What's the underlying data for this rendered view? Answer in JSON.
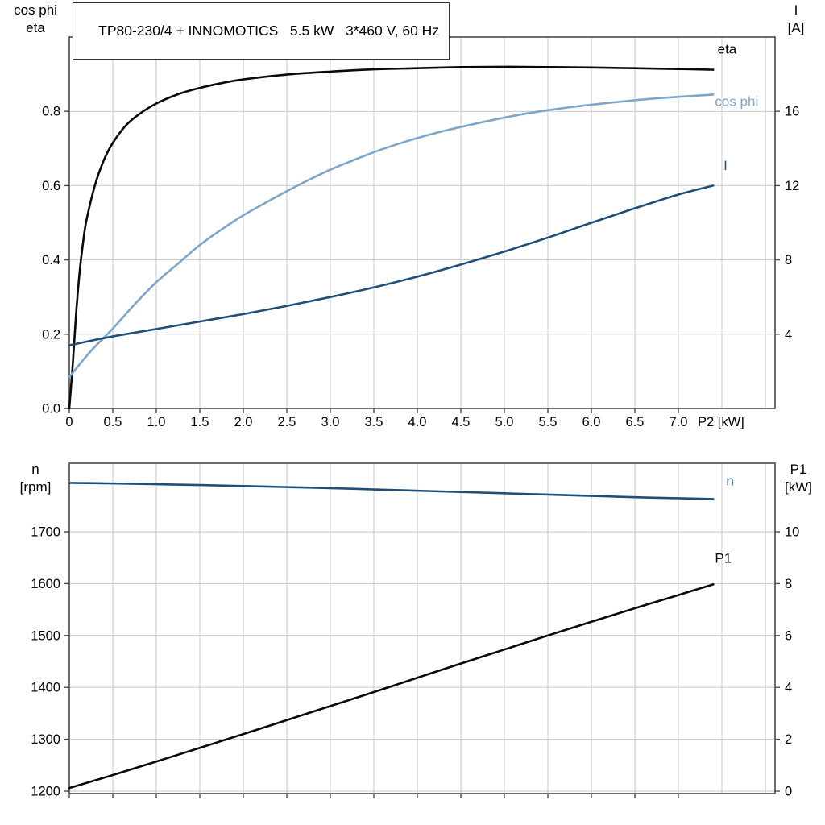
{
  "title_box": {
    "text": "TP80-230/4 + INNOMOTICS   5.5 kW   3*460 V, 60 Hz"
  },
  "colors": {
    "grid": "#c9c9c9",
    "frame": "#4a4a4a",
    "text": "#000000",
    "black_curve": "#0a0a0a",
    "dark_blue": "#1f4e79",
    "light_blue": "#7fa5c9"
  },
  "chart_data": [
    {
      "id": "motor-electrical",
      "type": "line",
      "x_axis": {
        "label": "P2 [kW]",
        "range": [
          0,
          8.111
        ],
        "ticks": [
          0,
          0.5,
          1,
          1.5,
          2,
          2.5,
          3,
          3.5,
          4,
          4.5,
          5,
          5.5,
          6,
          6.5,
          7
        ],
        "tick_labels": [
          "0",
          "0.5",
          "1.0",
          "1.5",
          "2.0",
          "2.5",
          "3.0",
          "3.5",
          "4.0",
          "4.5",
          "5.0",
          "5.5",
          "6.0",
          "6.5",
          "7.0"
        ],
        "grid": [
          0.5,
          1,
          1.5,
          2,
          2.5,
          3,
          3.5,
          4,
          4.5,
          5,
          5.5,
          6,
          6.5,
          7,
          7.5,
          8
        ]
      },
      "y_left": {
        "title_lines": [
          "cos phi",
          "eta"
        ],
        "range": [
          0,
          1.0
        ],
        "ticks": [
          0,
          0.2,
          0.4,
          0.6,
          0.8
        ],
        "tick_labels": [
          "0.0",
          "0.2",
          "0.4",
          "0.6",
          "0.8"
        ],
        "grid": [
          0.2,
          0.4,
          0.6,
          0.8
        ]
      },
      "y_right": {
        "title_lines": [
          "I",
          "[A]"
        ],
        "range": [
          0,
          20
        ],
        "ticks": [
          4,
          8,
          12,
          16
        ],
        "tick_labels": [
          "4",
          "8",
          "12",
          "16"
        ]
      },
      "series": [
        {
          "name": "eta",
          "axis": "left",
          "color_key": "black_curve",
          "label": {
            "text": "eta",
            "x": 7.45,
            "y": 0.955
          },
          "points": [
            [
              0,
              0
            ],
            [
              0.04,
              0.12
            ],
            [
              0.08,
              0.26
            ],
            [
              0.12,
              0.37
            ],
            [
              0.16,
              0.45
            ],
            [
              0.2,
              0.51
            ],
            [
              0.3,
              0.605
            ],
            [
              0.4,
              0.67
            ],
            [
              0.5,
              0.715
            ],
            [
              0.65,
              0.762
            ],
            [
              0.8,
              0.792
            ],
            [
              1,
              0.821
            ],
            [
              1.25,
              0.846
            ],
            [
              1.5,
              0.863
            ],
            [
              1.75,
              0.876
            ],
            [
              2,
              0.886
            ],
            [
              2.5,
              0.899
            ],
            [
              3,
              0.907
            ],
            [
              3.5,
              0.913
            ],
            [
              4,
              0.916
            ],
            [
              4.5,
              0.919
            ],
            [
              5,
              0.92
            ],
            [
              5.5,
              0.919
            ],
            [
              6,
              0.918
            ],
            [
              6.5,
              0.916
            ],
            [
              7,
              0.914
            ],
            [
              7.4,
              0.912
            ]
          ]
        },
        {
          "name": "cos phi",
          "axis": "left",
          "color_key": "light_blue",
          "label": {
            "text": "cos phi",
            "x": 7.42,
            "y": 0.815
          },
          "points": [
            [
              0,
              0.085
            ],
            [
              0.25,
              0.155
            ],
            [
              0.5,
              0.215
            ],
            [
              0.75,
              0.28
            ],
            [
              1,
              0.34
            ],
            [
              1.25,
              0.39
            ],
            [
              1.5,
              0.44
            ],
            [
              1.75,
              0.482
            ],
            [
              2,
              0.52
            ],
            [
              2.25,
              0.553
            ],
            [
              2.5,
              0.585
            ],
            [
              2.75,
              0.615
            ],
            [
              3,
              0.643
            ],
            [
              3.25,
              0.667
            ],
            [
              3.5,
              0.69
            ],
            [
              3.75,
              0.71
            ],
            [
              4,
              0.728
            ],
            [
              4.25,
              0.744
            ],
            [
              4.5,
              0.758
            ],
            [
              4.75,
              0.771
            ],
            [
              5,
              0.783
            ],
            [
              5.25,
              0.794
            ],
            [
              5.5,
              0.803
            ],
            [
              5.75,
              0.811
            ],
            [
              6,
              0.818
            ],
            [
              6.25,
              0.824
            ],
            [
              6.5,
              0.83
            ],
            [
              6.75,
              0.835
            ],
            [
              7,
              0.839
            ],
            [
              7.2,
              0.842
            ],
            [
              7.4,
              0.845
            ]
          ]
        },
        {
          "name": "I",
          "axis": "right",
          "color_key": "dark_blue",
          "label": {
            "text": "I",
            "x": 7.52,
            "y": 12.85
          },
          "points": [
            [
              0,
              3.4
            ],
            [
              0.25,
              3.65
            ],
            [
              0.5,
              3.88
            ],
            [
              0.75,
              4.08
            ],
            [
              1,
              4.28
            ],
            [
              1.5,
              4.68
            ],
            [
              2,
              5.08
            ],
            [
              2.5,
              5.52
            ],
            [
              3,
              6.0
            ],
            [
              3.5,
              6.52
            ],
            [
              4,
              7.1
            ],
            [
              4.5,
              7.75
            ],
            [
              5,
              8.45
            ],
            [
              5.5,
              9.2
            ],
            [
              6,
              10.0
            ],
            [
              6.5,
              10.78
            ],
            [
              7,
              11.52
            ],
            [
              7.4,
              12.0
            ]
          ]
        }
      ]
    },
    {
      "id": "motor-mechanical",
      "type": "line",
      "x_axis": {
        "label": "",
        "range": [
          0,
          8.111
        ],
        "ticks": [
          0,
          0.5,
          1,
          1.5,
          2,
          2.5,
          3,
          3.5,
          4,
          4.5,
          5,
          5.5,
          6,
          6.5,
          7
        ],
        "tick_labels": [],
        "grid": [
          0.5,
          1,
          1.5,
          2,
          2.5,
          3,
          3.5,
          4,
          4.5,
          5,
          5.5,
          6,
          6.5,
          7,
          7.5,
          8
        ]
      },
      "y_left": {
        "title_lines": [
          "n",
          "[rpm]"
        ],
        "range": [
          1195.3,
          1832
        ],
        "ticks": [
          1200,
          1300,
          1400,
          1500,
          1600,
          1700
        ],
        "tick_labels": [
          "1200",
          "1300",
          "1400",
          "1500",
          "1600",
          "1700"
        ],
        "grid": [
          1200,
          1300,
          1400,
          1500,
          1600,
          1700
        ]
      },
      "y_right": {
        "title_lines": [
          "P1",
          "[kW]"
        ],
        "range": [
          -0.093,
          12.64
        ],
        "ticks": [
          0,
          2,
          4,
          6,
          8,
          10
        ],
        "tick_labels": [
          "0",
          "2",
          "4",
          "6",
          "8",
          "10"
        ]
      },
      "series": [
        {
          "name": "n",
          "axis": "left",
          "color_key": "dark_blue",
          "label": {
            "text": "n",
            "x": 7.55,
            "y": 1789
          },
          "points": [
            [
              0,
              1794
            ],
            [
              0.5,
              1793
            ],
            [
              1,
              1791.5
            ],
            [
              1.5,
              1790
            ],
            [
              2,
              1788
            ],
            [
              2.5,
              1786
            ],
            [
              3,
              1784
            ],
            [
              3.5,
              1781.5
            ],
            [
              4,
              1779
            ],
            [
              4.5,
              1776.5
            ],
            [
              5,
              1774
            ],
            [
              5.5,
              1771.5
            ],
            [
              6,
              1769
            ],
            [
              6.5,
              1766.5
            ],
            [
              7,
              1764.5
            ],
            [
              7.4,
              1763
            ]
          ]
        },
        {
          "name": "P1",
          "axis": "right",
          "color_key": "black_curve",
          "label": {
            "text": "P1",
            "x": 7.42,
            "y": 8.8
          },
          "points": [
            [
              0,
              0.12
            ],
            [
              0.5,
              0.62
            ],
            [
              1,
              1.14
            ],
            [
              1.5,
              1.67
            ],
            [
              2,
              2.2
            ],
            [
              2.5,
              2.74
            ],
            [
              3,
              3.28
            ],
            [
              3.5,
              3.82
            ],
            [
              4,
              4.37
            ],
            [
              4.5,
              4.92
            ],
            [
              5,
              5.46
            ],
            [
              5.5,
              6.0
            ],
            [
              6,
              6.53
            ],
            [
              6.5,
              7.05
            ],
            [
              7,
              7.56
            ],
            [
              7.4,
              7.97
            ]
          ]
        }
      ]
    }
  ]
}
